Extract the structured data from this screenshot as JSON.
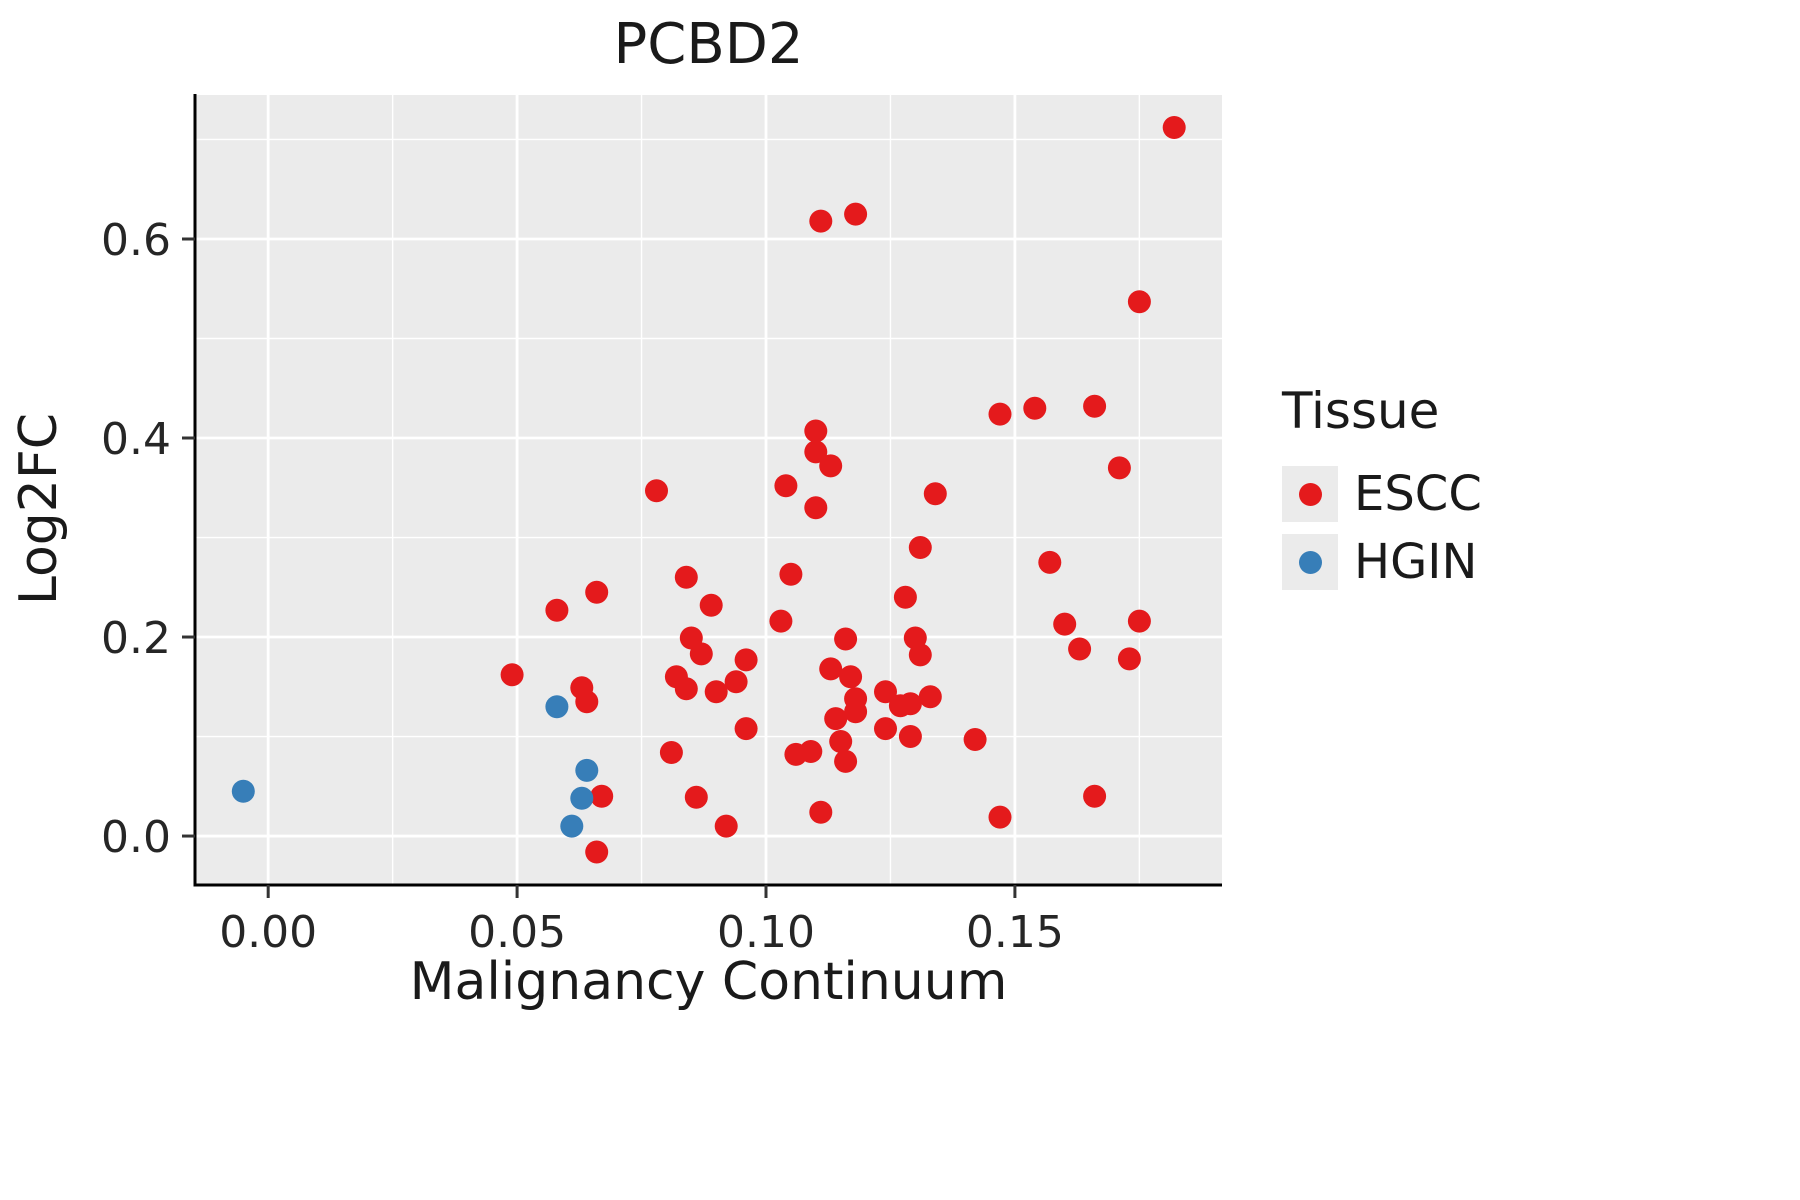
{
  "chart_data": {
    "type": "scatter",
    "title": "PCBD2",
    "xlabel": "Malignancy Continuum",
    "ylabel": "Log2FC",
    "xlim": [
      -0.0147,
      0.1916
    ],
    "ylim": [
      -0.0492,
      0.7447
    ],
    "x_ticks": [
      {
        "value": 0.0,
        "label": "0.00"
      },
      {
        "value": 0.05,
        "label": "0.05"
      },
      {
        "value": 0.1,
        "label": "0.10"
      },
      {
        "value": 0.15,
        "label": "0.15"
      }
    ],
    "x_minor": [
      0.025,
      0.075,
      0.125,
      0.175
    ],
    "y_ticks": [
      {
        "value": 0.0,
        "label": "0.0"
      },
      {
        "value": 0.2,
        "label": "0.2"
      },
      {
        "value": 0.4,
        "label": "0.4"
      },
      {
        "value": 0.6,
        "label": "0.6"
      }
    ],
    "y_minor": [
      0.1,
      0.3,
      0.5,
      0.7
    ],
    "grid": "major and minor white gridlines on gray panel",
    "legend": {
      "title": "Tissue",
      "position": "right"
    },
    "point_radius": 11.5,
    "colors": {
      "panel_bg": "#EBEBEB",
      "grid": "#FFFFFF",
      "axis": "#000000",
      "tick_mark": "#333333",
      "escc": "#E41A1C",
      "hgin": "#377EB8"
    },
    "series": [
      {
        "name": "ESCC",
        "color": "#E41A1C",
        "points": [
          [
            0.182,
            0.712
          ],
          [
            0.111,
            0.618
          ],
          [
            0.118,
            0.625
          ],
          [
            0.175,
            0.537
          ],
          [
            0.147,
            0.424
          ],
          [
            0.154,
            0.43
          ],
          [
            0.166,
            0.432
          ],
          [
            0.11,
            0.407
          ],
          [
            0.11,
            0.386
          ],
          [
            0.113,
            0.372
          ],
          [
            0.171,
            0.37
          ],
          [
            0.078,
            0.347
          ],
          [
            0.104,
            0.352
          ],
          [
            0.11,
            0.33
          ],
          [
            0.134,
            0.344
          ],
          [
            0.131,
            0.29
          ],
          [
            0.157,
            0.275
          ],
          [
            0.084,
            0.26
          ],
          [
            0.105,
            0.263
          ],
          [
            0.066,
            0.245
          ],
          [
            0.089,
            0.232
          ],
          [
            0.128,
            0.24
          ],
          [
            0.058,
            0.227
          ],
          [
            0.103,
            0.216
          ],
          [
            0.16,
            0.213
          ],
          [
            0.175,
            0.216
          ],
          [
            0.085,
            0.199
          ],
          [
            0.116,
            0.198
          ],
          [
            0.13,
            0.199
          ],
          [
            0.131,
            0.182
          ],
          [
            0.163,
            0.188
          ],
          [
            0.173,
            0.178
          ],
          [
            0.096,
            0.177
          ],
          [
            0.087,
            0.183
          ],
          [
            0.049,
            0.162
          ],
          [
            0.082,
            0.16
          ],
          [
            0.084,
            0.148
          ],
          [
            0.063,
            0.149
          ],
          [
            0.09,
            0.145
          ],
          [
            0.094,
            0.155
          ],
          [
            0.113,
            0.168
          ],
          [
            0.117,
            0.16
          ],
          [
            0.118,
            0.138
          ],
          [
            0.124,
            0.145
          ],
          [
            0.127,
            0.131
          ],
          [
            0.129,
            0.133
          ],
          [
            0.133,
            0.14
          ],
          [
            0.064,
            0.135
          ],
          [
            0.114,
            0.118
          ],
          [
            0.118,
            0.125
          ],
          [
            0.096,
            0.108
          ],
          [
            0.124,
            0.108
          ],
          [
            0.129,
            0.1
          ],
          [
            0.142,
            0.097
          ],
          [
            0.115,
            0.095
          ],
          [
            0.106,
            0.082
          ],
          [
            0.109,
            0.085
          ],
          [
            0.116,
            0.075
          ],
          [
            0.081,
            0.084
          ],
          [
            0.086,
            0.039
          ],
          [
            0.067,
            0.04
          ],
          [
            0.166,
            0.04
          ],
          [
            0.147,
            0.019
          ],
          [
            0.111,
            0.024
          ],
          [
            0.092,
            0.01
          ],
          [
            0.066,
            -0.016
          ]
        ]
      },
      {
        "name": "HGIN",
        "color": "#377EB8",
        "points": [
          [
            -0.005,
            0.045
          ],
          [
            0.058,
            0.13
          ],
          [
            0.064,
            0.066
          ],
          [
            0.063,
            0.038
          ],
          [
            0.061,
            0.01
          ]
        ]
      }
    ]
  }
}
